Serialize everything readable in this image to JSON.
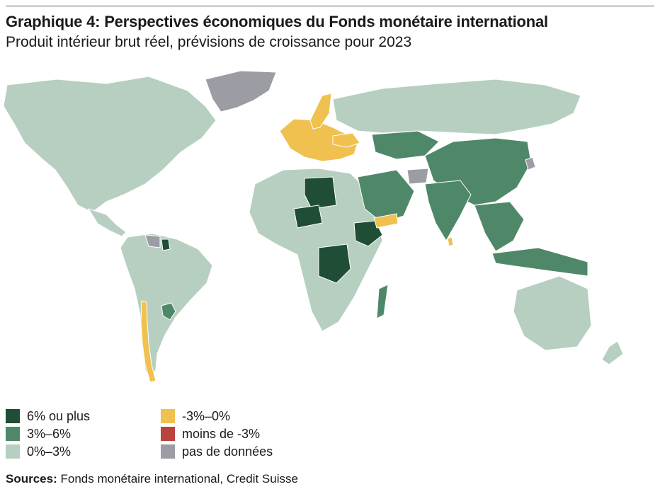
{
  "figure": {
    "title": "Graphique 4: Perspectives économiques du Fonds monétaire international",
    "subtitle": "Produit intérieur brut réel, prévisions de croissance pour 2023"
  },
  "legend": [
    {
      "label": "6% ou plus",
      "color": "#1f4d35"
    },
    {
      "label": "3%–6%",
      "color": "#4f8868"
    },
    {
      "label": "0%–3%",
      "color": "#b6cfc0"
    },
    {
      "label": "-3%–0%",
      "color": "#f0c14f"
    },
    {
      "label": "moins de -3%",
      "color": "#b9443d"
    },
    {
      "label": "pas de données",
      "color": "#9c9ca4"
    }
  ],
  "source": {
    "label": "Sources:",
    "text": "Fonds monétaire international, Credit Suisse"
  },
  "map_data": {
    "type": "choropleth",
    "regions": [
      {
        "region": "Amérique du Nord",
        "category": "0%–3%"
      },
      {
        "region": "Groenland",
        "category": "pas de données"
      },
      {
        "region": "Amérique du Sud",
        "category": "0%–3%"
      },
      {
        "region": "Chili",
        "category": "-3%–0%"
      },
      {
        "region": "Paraguay",
        "category": "3%–6%"
      },
      {
        "region": "Guyana",
        "category": "6% ou plus"
      },
      {
        "region": "Venezuela",
        "category": "pas de données"
      },
      {
        "region": "Europe occidentale",
        "category": "-3%–0%"
      },
      {
        "region": "Suède",
        "category": "-3%–0%"
      },
      {
        "region": "Ukraine",
        "category": "-3%–0%"
      },
      {
        "region": "Russie",
        "category": "0%–3%"
      },
      {
        "region": "Libye",
        "category": "6% ou plus"
      },
      {
        "region": "Niger",
        "category": "6% ou plus"
      },
      {
        "region": "RD Congo",
        "category": "6% ou plus"
      },
      {
        "region": "Éthiopie",
        "category": "6% ou plus"
      },
      {
        "region": "Afrique du Sud",
        "category": "0%–3%"
      },
      {
        "region": "Madagascar",
        "category": "3%–6%"
      },
      {
        "region": "Arabie saoudite",
        "category": "3%–6%"
      },
      {
        "region": "Yémen",
        "category": "-3%–0%"
      },
      {
        "region": "Afghanistan",
        "category": "pas de données"
      },
      {
        "region": "Chine",
        "category": "3%–6%"
      },
      {
        "region": "Inde",
        "category": "3%–6%"
      },
      {
        "region": "Sri Lanka",
        "category": "-3%–0%"
      },
      {
        "region": "Corée du Nord",
        "category": "pas de données"
      },
      {
        "region": "Indonésie",
        "category": "3%–6%"
      },
      {
        "region": "Australie",
        "category": "0%–3%"
      }
    ]
  }
}
